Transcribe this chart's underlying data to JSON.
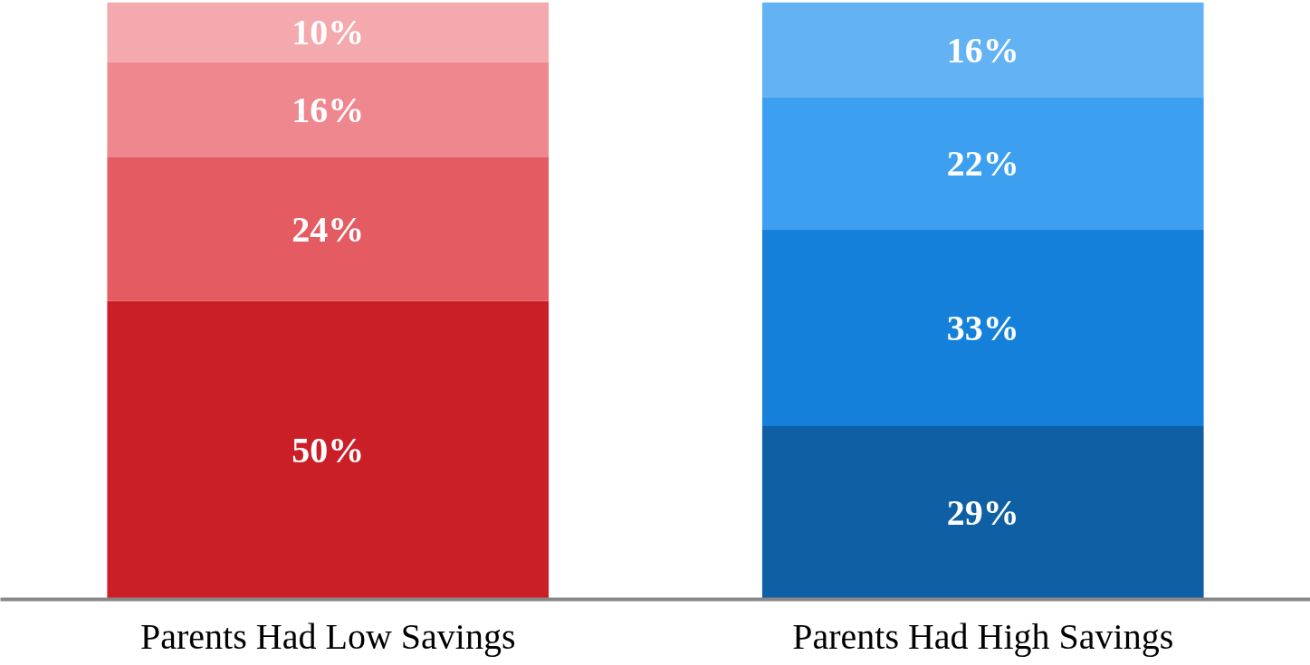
{
  "chart_data": {
    "type": "bar",
    "stacked": true,
    "categories": [
      "Parents Had Low Savings",
      "Parents Had High Savings"
    ],
    "series": [
      {
        "colors": [
          "#cb1f27",
          "#0e5fa3"
        ],
        "values": [
          50,
          29
        ],
        "value_labels": [
          "50%",
          "29%"
        ]
      },
      {
        "colors": [
          "#e45b62",
          "#1480da"
        ],
        "values": [
          24,
          33
        ],
        "value_labels": [
          "24%",
          "33%"
        ]
      },
      {
        "colors": [
          "#ee888e",
          "#3c9fef"
        ],
        "values": [
          16,
          22
        ],
        "value_labels": [
          "16%",
          "22%"
        ]
      },
      {
        "colors": [
          "#f3a9ad",
          "#62b2f4"
        ],
        "values": [
          10,
          16
        ],
        "value_labels": [
          "10%",
          "16%"
        ]
      }
    ]
  }
}
